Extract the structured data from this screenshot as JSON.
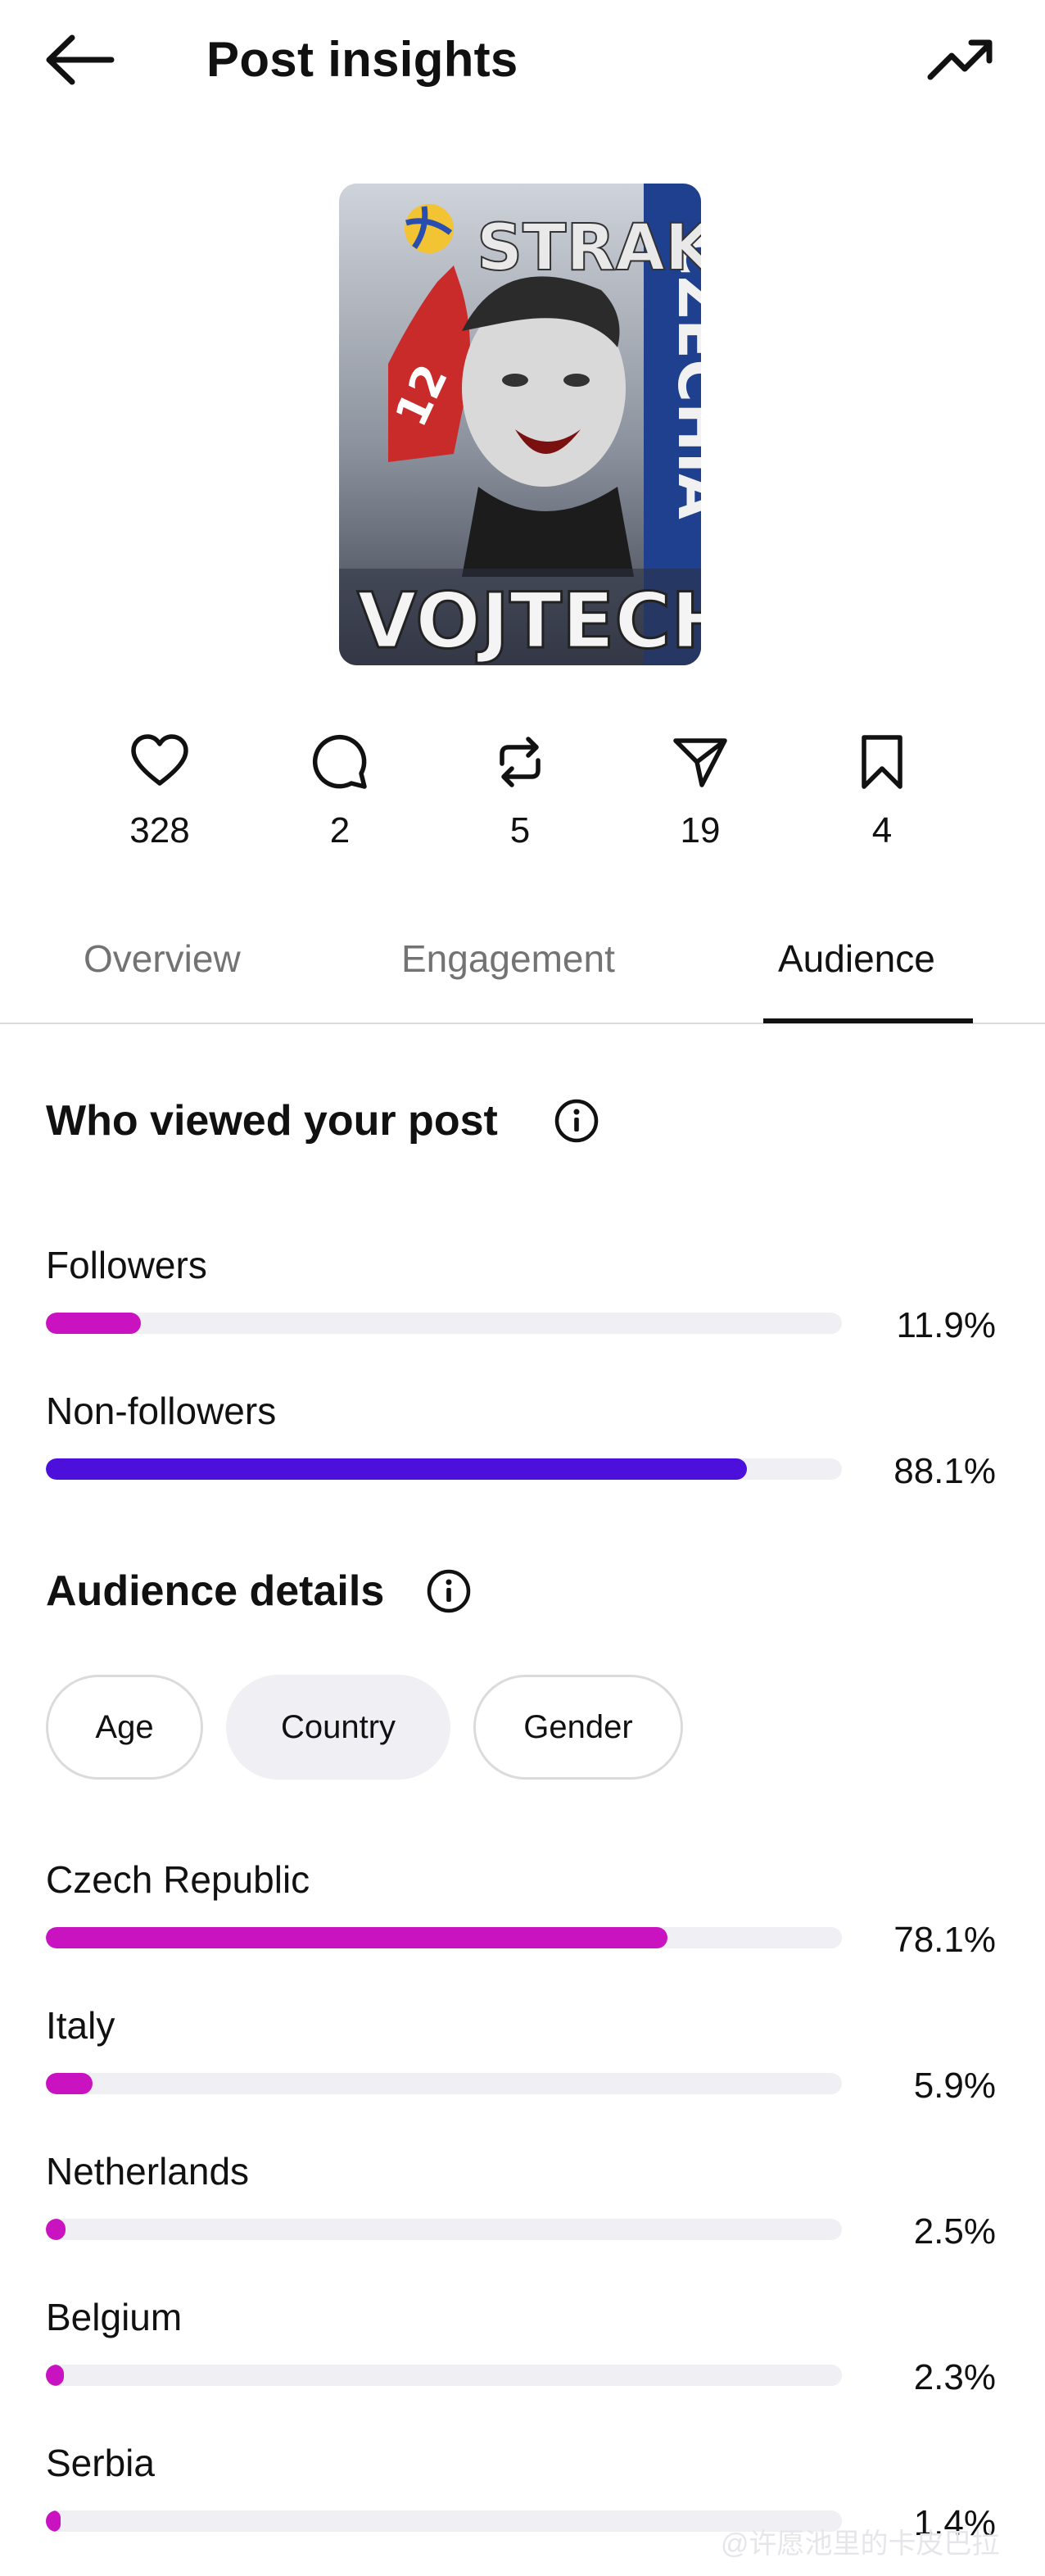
{
  "header": {
    "title": "Post insights",
    "back_icon": "arrow-left-icon",
    "trend_icon": "trending-up-icon"
  },
  "thumbnail": {
    "text_top": "STRAK",
    "text_bottom": "VOJTECH",
    "text_side": "CZECHIA",
    "jersey_number": "12"
  },
  "stats": [
    {
      "icon": "heart-icon",
      "value": "328"
    },
    {
      "icon": "comment-icon",
      "value": "2"
    },
    {
      "icon": "repost-icon",
      "value": "5"
    },
    {
      "icon": "share-icon",
      "value": "19"
    },
    {
      "icon": "bookmark-icon",
      "value": "4"
    }
  ],
  "tabs": [
    {
      "label": "Overview"
    },
    {
      "label": "Engagement"
    },
    {
      "label": "Audience",
      "active": true
    }
  ],
  "viewers": {
    "title": "Who viewed your post",
    "rows": [
      {
        "label": "Followers",
        "value": "11.9%",
        "fraction": 0.119,
        "color": "#c913c1"
      },
      {
        "label": "Non-followers",
        "value": "88.1%",
        "fraction": 0.881,
        "color": "#4c0fdc"
      }
    ]
  },
  "audience": {
    "title": "Audience details",
    "chips": [
      {
        "label": "Age",
        "selected": false
      },
      {
        "label": "Country",
        "selected": true
      },
      {
        "label": "Gender",
        "selected": false
      }
    ],
    "rows": [
      {
        "label": "Czech Republic",
        "value": "78.1%",
        "fraction": 0.781
      },
      {
        "label": "Italy",
        "value": "5.9%",
        "fraction": 0.059
      },
      {
        "label": "Netherlands",
        "value": "2.5%",
        "fraction": 0.025
      },
      {
        "label": "Belgium",
        "value": "2.3%",
        "fraction": 0.023
      },
      {
        "label": "Serbia",
        "value": "1.4%",
        "fraction": 0.014
      }
    ],
    "bar_color": "#c913c1"
  },
  "watermark": "@许愿池里的卡皮巴拉"
}
